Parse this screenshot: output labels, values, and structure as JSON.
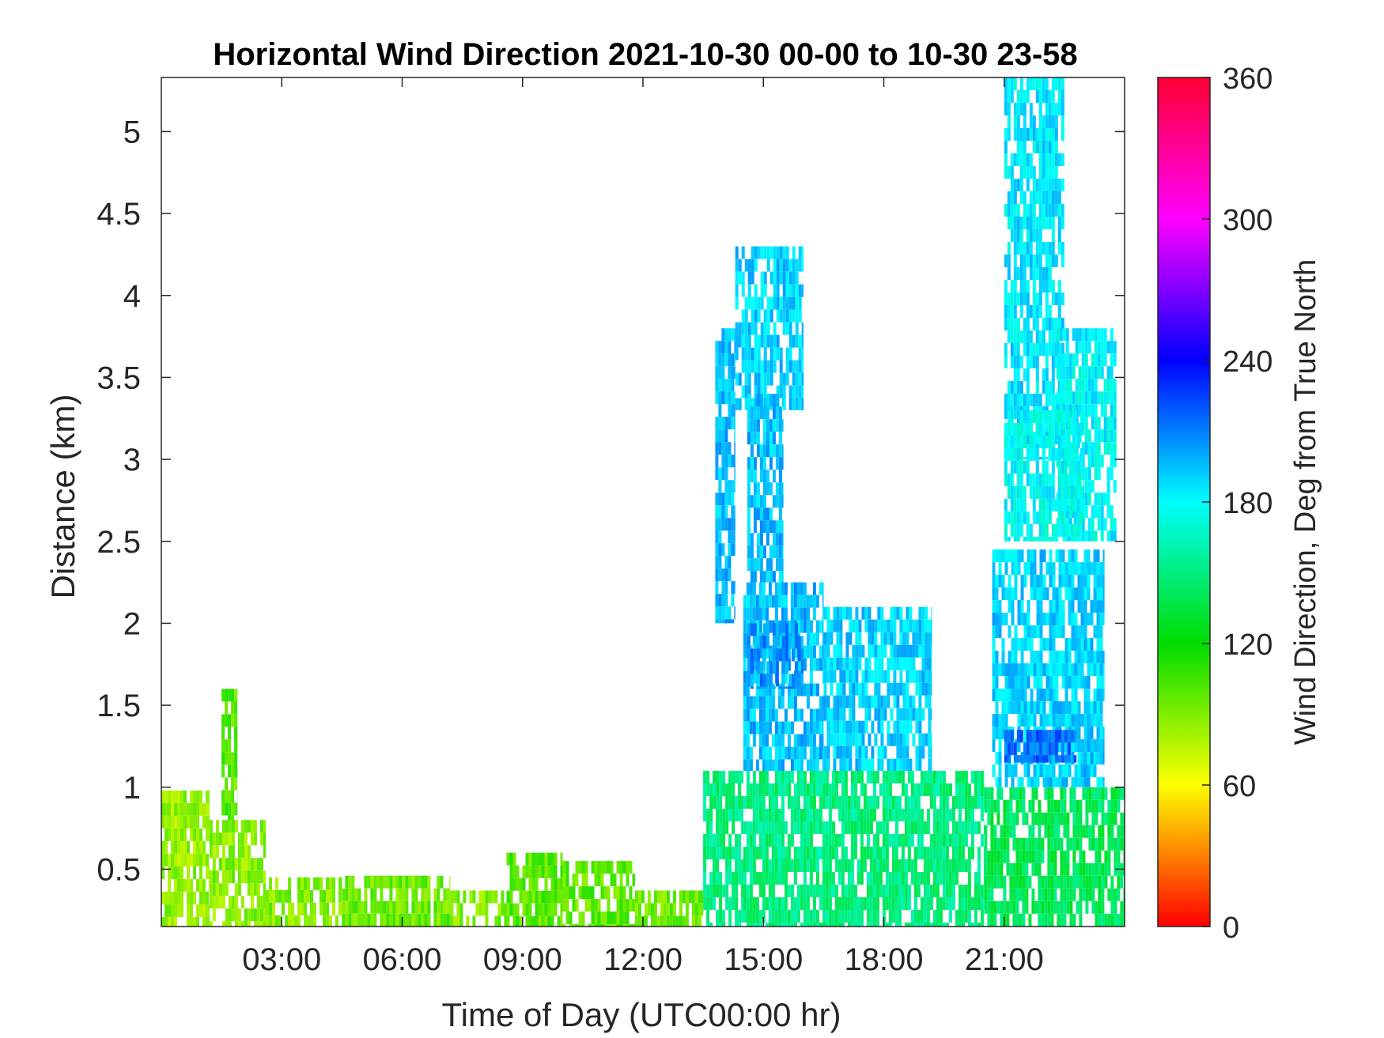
{
  "chart_data": {
    "type": "heatmap",
    "title": "Horizontal Wind Direction 2021-10-30 00-00 to 10-30 23-58",
    "xlabel": "Time of Day (UTC00:00 hr)",
    "ylabel": "Distance (km)",
    "xlim": [
      0,
      24
    ],
    "ylim": [
      0.15,
      5.33
    ],
    "x_ticks": [
      {
        "value": 3,
        "label": "03:00"
      },
      {
        "value": 6,
        "label": "06:00"
      },
      {
        "value": 9,
        "label": "09:00"
      },
      {
        "value": 12,
        "label": "12:00"
      },
      {
        "value": 15,
        "label": "15:00"
      },
      {
        "value": 18,
        "label": "18:00"
      },
      {
        "value": 21,
        "label": "21:00"
      }
    ],
    "y_ticks": [
      {
        "value": 0.5,
        "label": "0.5"
      },
      {
        "value": 1,
        "label": "1"
      },
      {
        "value": 1.5,
        "label": "1.5"
      },
      {
        "value": 2,
        "label": "2"
      },
      {
        "value": 2.5,
        "label": "2.5"
      },
      {
        "value": 3,
        "label": "3"
      },
      {
        "value": 3.5,
        "label": "3.5"
      },
      {
        "value": 4,
        "label": "4"
      },
      {
        "value": 4.5,
        "label": "4.5"
      },
      {
        "value": 5,
        "label": "5"
      }
    ],
    "colorbar": {
      "label": "Wind Direction, Deg from True North",
      "range": [
        0,
        360
      ],
      "ticks": [
        {
          "value": 0,
          "label": "0"
        },
        {
          "value": 60,
          "label": "60"
        },
        {
          "value": 120,
          "label": "120"
        },
        {
          "value": 180,
          "label": "180"
        },
        {
          "value": 240,
          "label": "240"
        },
        {
          "value": 300,
          "label": "300"
        },
        {
          "value": 360,
          "label": "360"
        }
      ],
      "stops": [
        {
          "value": 0,
          "color": "#ff0000"
        },
        {
          "value": 60,
          "color": "#ffff00"
        },
        {
          "value": 120,
          "color": "#00dd00"
        },
        {
          "value": 180,
          "color": "#00ffff"
        },
        {
          "value": 240,
          "color": "#0000ff"
        },
        {
          "value": 300,
          "color": "#ff00ff"
        },
        {
          "value": 360,
          "color": "#ff0033"
        }
      ]
    },
    "regions": [
      {
        "x0": 0,
        "x1": 1.2,
        "y0": 0.15,
        "y1": 0.98,
        "dir": 85
      },
      {
        "x0": 1.2,
        "x1": 2.6,
        "y0": 0.15,
        "y1": 0.8,
        "dir": 88
      },
      {
        "x0": 1.5,
        "x1": 1.9,
        "y0": 0.8,
        "y1": 1.6,
        "dir": 100
      },
      {
        "x0": 2.6,
        "x1": 4.5,
        "y0": 0.15,
        "y1": 0.45,
        "dir": 90
      },
      {
        "x0": 4.5,
        "x1": 7.2,
        "y0": 0.15,
        "y1": 0.46,
        "dir": 95
      },
      {
        "x0": 7.2,
        "x1": 8.6,
        "y0": 0.15,
        "y1": 0.37,
        "dir": 90
      },
      {
        "x0": 8.6,
        "x1": 10.0,
        "y0": 0.15,
        "y1": 0.6,
        "dir": 100
      },
      {
        "x0": 10.0,
        "x1": 11.8,
        "y0": 0.15,
        "y1": 0.55,
        "dir": 98
      },
      {
        "x0": 11.8,
        "x1": 13.5,
        "y0": 0.15,
        "y1": 0.37,
        "dir": 95
      },
      {
        "x0": 13.5,
        "x1": 14.5,
        "y0": 0.15,
        "y1": 1.1,
        "dir": 150
      },
      {
        "x0": 14.5,
        "x1": 20.5,
        "y0": 0.15,
        "y1": 1.1,
        "dir": 150
      },
      {
        "x0": 20.5,
        "x1": 24.0,
        "y0": 0.15,
        "y1": 1.0,
        "dir": 140
      },
      {
        "x0": 14.5,
        "x1": 16.5,
        "y0": 1.1,
        "y1": 2.25,
        "dir": 195
      },
      {
        "x0": 16.5,
        "x1": 19.2,
        "y0": 1.1,
        "y1": 2.1,
        "dir": 190
      },
      {
        "x0": 20.7,
        "x1": 23.5,
        "y0": 1.0,
        "y1": 2.45,
        "dir": 190
      },
      {
        "x0": 21.0,
        "x1": 22.8,
        "y0": 1.15,
        "y1": 1.35,
        "dir": 215
      },
      {
        "x0": 14.6,
        "x1": 16.0,
        "y0": 1.6,
        "y1": 2.0,
        "dir": 205
      },
      {
        "x0": 13.8,
        "x1": 14.3,
        "y0": 2.0,
        "y1": 3.8,
        "dir": 195
      },
      {
        "x0": 14.3,
        "x1": 16.0,
        "y0": 3.3,
        "y1": 4.3,
        "dir": 190
      },
      {
        "x0": 14.6,
        "x1": 15.5,
        "y0": 2.25,
        "y1": 3.4,
        "dir": 195
      },
      {
        "x0": 21.0,
        "x1": 22.5,
        "y0": 3.0,
        "y1": 5.33,
        "dir": 185
      },
      {
        "x0": 22.3,
        "x1": 23.8,
        "y0": 2.5,
        "y1": 3.8,
        "dir": 180
      },
      {
        "x0": 21.0,
        "x1": 23.0,
        "y0": 2.5,
        "y1": 3.3,
        "dir": 178
      }
    ]
  }
}
